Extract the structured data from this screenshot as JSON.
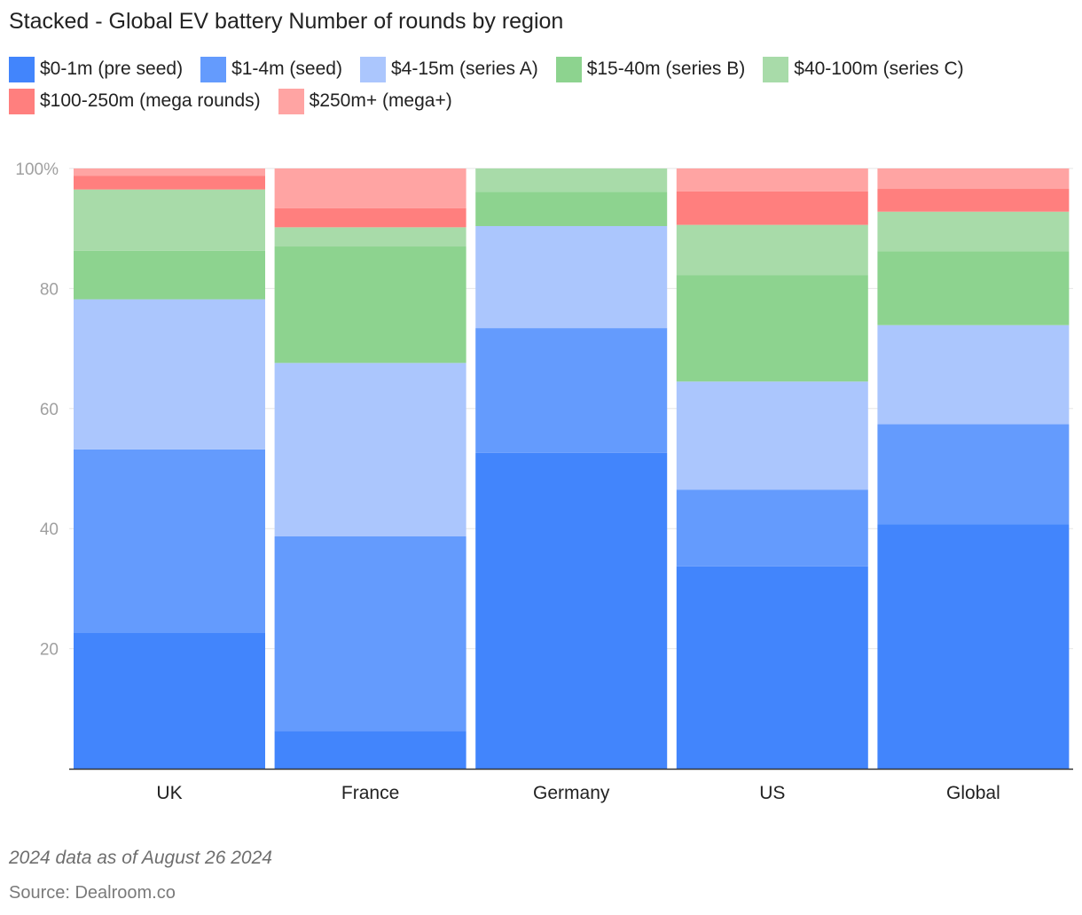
{
  "chart_data": {
    "type": "bar",
    "stacked": true,
    "title": "Stacked - Global EV battery Number of rounds by region",
    "categories": [
      "UK",
      "France",
      "Germany",
      "US",
      "Global"
    ],
    "ylim": [
      0,
      100
    ],
    "yticks": [
      20,
      40,
      60,
      80,
      100
    ],
    "ytick_labels": [
      "20",
      "40",
      "60",
      "80",
      "100%"
    ],
    "grid": true,
    "legend_position": "top",
    "series": [
      {
        "name": "$0-1m (pre seed)",
        "color": "#4285fc",
        "values": [
          22.6,
          6.3,
          52.6,
          33.7,
          40.7
        ]
      },
      {
        "name": "$1-4m (seed)",
        "color": "#649bfd",
        "values": [
          30.6,
          32.4,
          20.8,
          12.8,
          16.7
        ]
      },
      {
        "name": "$4-15m (series A)",
        "color": "#abc6fd",
        "values": [
          25.0,
          28.9,
          17.0,
          18.0,
          16.5
        ]
      },
      {
        "name": "$15-40m (series B)",
        "color": "#8dd38f",
        "values": [
          8.1,
          19.4,
          5.7,
          17.7,
          12.3
        ]
      },
      {
        "name": "$40-100m (series C)",
        "color": "#a8dba9",
        "values": [
          10.2,
          3.2,
          3.9,
          8.4,
          6.6
        ]
      },
      {
        "name": "$100-250m (mega rounds)",
        "color": "#ff7f7e",
        "values": [
          2.3,
          3.2,
          0,
          5.6,
          3.8
        ]
      },
      {
        "name": "$250m+ (mega+)",
        "color": "#ffa4a3",
        "values": [
          1.2,
          6.6,
          0,
          3.8,
          3.4
        ]
      }
    ]
  },
  "footer": {
    "note": "2024 data as of August 26 2024",
    "source": "Source: Dealroom.co"
  }
}
